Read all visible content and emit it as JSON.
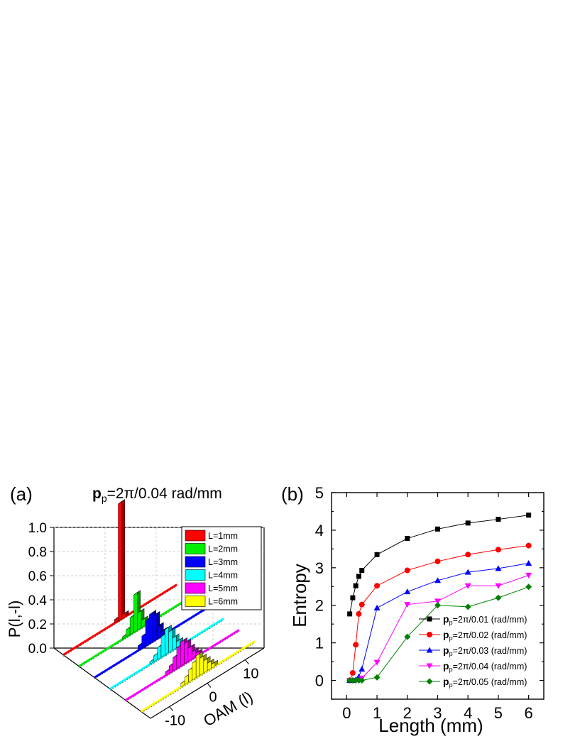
{
  "panel_a": {
    "label": "(a)",
    "title_bold": "p",
    "title_sub": "p",
    "title_rest": "=2π/0.04 rad/mm",
    "zlabel": "P(l,-l)",
    "xlabel": "OAM (l)",
    "z_ticks": [
      "0.0",
      "0.2",
      "0.4",
      "0.6",
      "0.8",
      "1.0"
    ],
    "x_ticks": [
      "-10",
      "0",
      "10"
    ]
  },
  "panel_b": {
    "label": "(b)"
  },
  "chart_data": [
    {
      "type": "bar",
      "subtype": "3d-bar",
      "z_range": [
        0,
        1.0
      ],
      "oam_range": [
        -15,
        15
      ],
      "series": [
        {
          "name": "L=1mm",
          "color": "#ff0000",
          "oam": [
            -1,
            0,
            1
          ],
          "values": [
            0.03,
            0.97,
            0.03
          ]
        },
        {
          "name": "L=2mm",
          "color": "#00ee00",
          "oam": [
            -3,
            -2,
            -1,
            0,
            1,
            2,
            3
          ],
          "values": [
            0.02,
            0.06,
            0.14,
            0.31,
            0.14,
            0.06,
            0.02
          ]
        },
        {
          "name": "L=3mm",
          "color": "#0000ff",
          "oam": [
            -3,
            -2,
            -1,
            0,
            1,
            2,
            3
          ],
          "values": [
            0.04,
            0.1,
            0.21,
            0.24,
            0.21,
            0.1,
            0.04
          ]
        },
        {
          "name": "L=4mm",
          "color": "#00ffff",
          "oam": [
            -4,
            -3,
            -2,
            -1,
            0,
            1,
            2,
            3,
            4
          ],
          "values": [
            0.02,
            0.05,
            0.1,
            0.17,
            0.21,
            0.17,
            0.1,
            0.05,
            0.02
          ]
        },
        {
          "name": "L=5mm",
          "color": "#ff00ff",
          "oam": [
            -4,
            -3,
            -2,
            -1,
            0,
            1,
            2,
            3,
            4
          ],
          "values": [
            0.03,
            0.06,
            0.11,
            0.17,
            0.2,
            0.17,
            0.11,
            0.06,
            0.03
          ]
        },
        {
          "name": "L=6mm",
          "color": "#ffff00",
          "oam": [
            -4,
            -3,
            -2,
            -1,
            0,
            1,
            2,
            3,
            4
          ],
          "values": [
            0.03,
            0.06,
            0.1,
            0.14,
            0.18,
            0.14,
            0.1,
            0.06,
            0.03
          ]
        }
      ]
    },
    {
      "type": "line",
      "xlabel": "Length (mm)",
      "ylabel": "Entropy",
      "xlim": [
        -0.5,
        6.5
      ],
      "ylim": [
        -0.5,
        5
      ],
      "x_ticks": [
        "0",
        "1",
        "2",
        "3",
        "4",
        "5",
        "6"
      ],
      "y_ticks": [
        "0",
        "1",
        "2",
        "3",
        "4",
        "5"
      ],
      "legend_position": "bottom-right",
      "series": [
        {
          "name_bold": "p",
          "name_sub": "p",
          "name_rest": "=2π/0.01 (rad/mm)",
          "color": "#000000",
          "marker": "square",
          "x": [
            0.1,
            0.2,
            0.3,
            0.4,
            0.5,
            1,
            2,
            3,
            4,
            5,
            6
          ],
          "y": [
            1.77,
            2.2,
            2.52,
            2.77,
            2.93,
            3.35,
            3.78,
            4.03,
            4.19,
            4.29,
            4.4
          ]
        },
        {
          "name_bold": "p",
          "name_sub": "p",
          "name_rest": "=2π/0.02 (rad/mm)",
          "color": "#ff0000",
          "marker": "circle",
          "x": [
            0.1,
            0.2,
            0.3,
            0.4,
            0.5,
            1,
            2,
            3,
            4,
            5,
            6
          ],
          "y": [
            0.0,
            0.2,
            0.95,
            1.77,
            2.02,
            2.52,
            2.93,
            3.17,
            3.35,
            3.48,
            3.59
          ]
        },
        {
          "name_bold": "p",
          "name_sub": "p",
          "name_rest": "=2π/0.03 (rad/mm)",
          "color": "#0000ff",
          "marker": "triangle-up",
          "x": [
            0.1,
            0.2,
            0.3,
            0.4,
            0.5,
            1,
            2,
            3,
            4,
            5,
            6
          ],
          "y": [
            0.0,
            0.0,
            0.02,
            0.1,
            0.3,
            1.93,
            2.36,
            2.66,
            2.88,
            2.98,
            3.12
          ]
        },
        {
          "name_bold": "p",
          "name_sub": "p",
          "name_rest": "=2π/0.04 (rad/mm)",
          "color": "#ff00ff",
          "marker": "triangle-down",
          "x": [
            0.1,
            0.2,
            0.3,
            0.4,
            0.5,
            1,
            2,
            3,
            4,
            5,
            6
          ],
          "y": [
            0.0,
            0.0,
            0.0,
            0.0,
            0.06,
            0.48,
            2.02,
            2.11,
            2.52,
            2.52,
            2.8
          ]
        },
        {
          "name_bold": "p",
          "name_sub": "p",
          "name_rest": "=2π/0.05 (rad/mm)",
          "color": "#008000",
          "marker": "diamond",
          "x": [
            0.1,
            0.2,
            0.3,
            0.4,
            0.5,
            1,
            2,
            3,
            4,
            5,
            6
          ],
          "y": [
            0.0,
            0.0,
            0.0,
            0.0,
            0.0,
            0.08,
            1.16,
            2.0,
            1.96,
            2.2,
            2.49
          ]
        }
      ]
    }
  ]
}
